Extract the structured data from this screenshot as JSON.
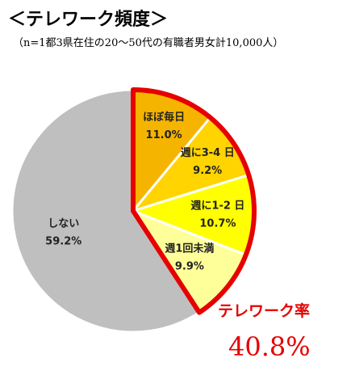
{
  "title": "＜テレワーク頻度＞",
  "subtitle": "（n=1都3県在住の20～50代の有職者男女計10,000人）",
  "chart_data": {
    "type": "pie",
    "slices": [
      {
        "label": "ほぼ毎日",
        "value": 11.0,
        "value_label": "11.0%",
        "color": "#f5b400"
      },
      {
        "label": "週に3-4 日",
        "value": 9.2,
        "value_label": "9.2%",
        "color": "#ffd400"
      },
      {
        "label": "週に1-2 日",
        "value": 10.7,
        "value_label": "10.7%",
        "color": "#ffff00"
      },
      {
        "label": "週1回未満",
        "value": 9.9,
        "value_label": "9.9%",
        "color": "#ffff99"
      },
      {
        "label": "しない",
        "value": 59.2,
        "value_label": "59.2%",
        "color": "#bfbfbf"
      }
    ],
    "highlight": {
      "label": "テレワーク率",
      "value": 40.8,
      "value_label": "40.8%",
      "color": "#e60000"
    }
  }
}
